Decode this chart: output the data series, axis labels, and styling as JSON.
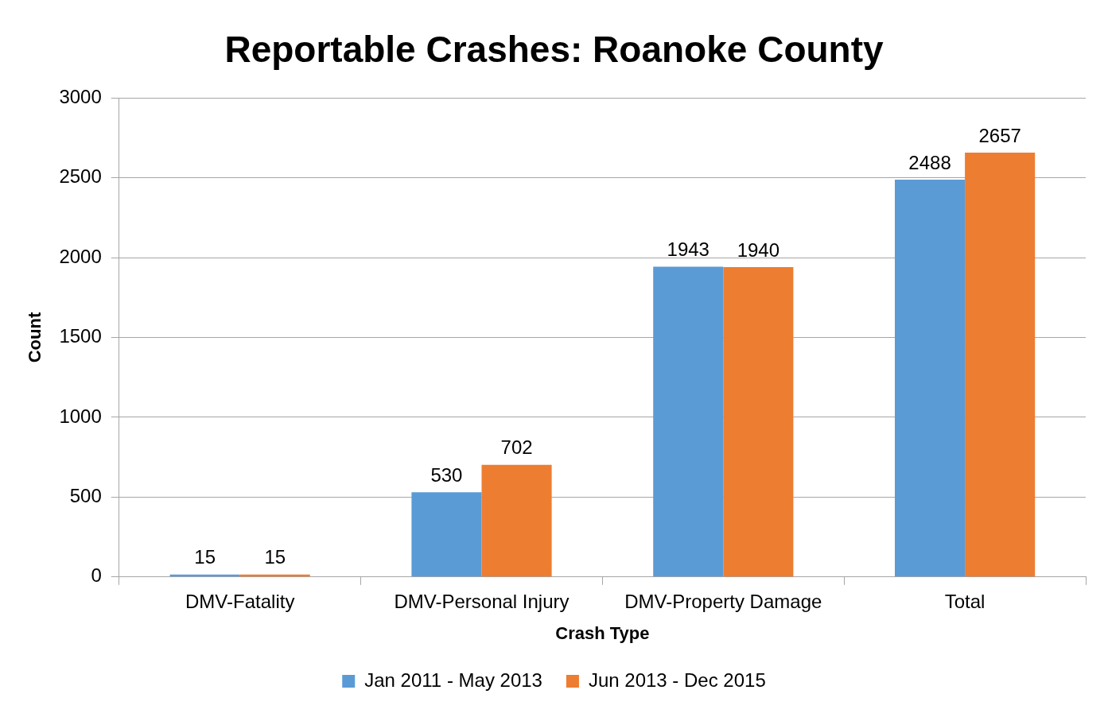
{
  "chart_data": {
    "type": "bar",
    "title": "Reportable Crashes: Roanoke County",
    "xlabel": "Crash Type",
    "ylabel": "Count",
    "categories": [
      "DMV-Fatality",
      "DMV-Personal Injury",
      "DMV-Property Damage",
      "Total"
    ],
    "series": [
      {
        "name": "Jan 2011 - May 2013",
        "color": "#5b9bd5",
        "values": [
          15,
          530,
          1943,
          2488
        ]
      },
      {
        "name": "Jun 2013 - Dec 2015",
        "color": "#ed7d31",
        "values": [
          15,
          702,
          1940,
          2657
        ]
      }
    ],
    "ylim": [
      0,
      3000
    ],
    "yticks": [
      0,
      500,
      1000,
      1500,
      2000,
      2500,
      3000
    ],
    "grid": "y",
    "legend": "bottom",
    "data_labels": true
  }
}
